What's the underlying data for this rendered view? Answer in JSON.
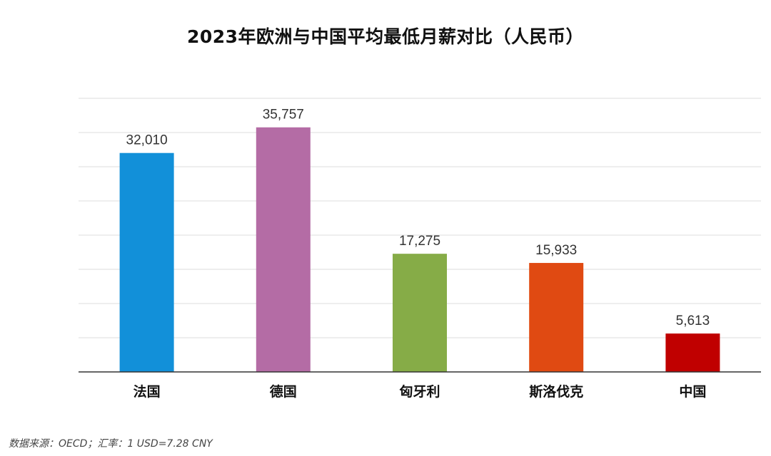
{
  "title": "2023年欧洲与中国平均最低月薪对比（人民币）",
  "source_note": "数据来源：OECD；汇率：1 USD=7.28 CNY",
  "colors": {
    "gridline": "#dddddd",
    "axis": "#333333"
  },
  "chart_data": {
    "type": "bar",
    "title": "2023年欧洲与中国平均最低月薪对比（人民币）",
    "xlabel": "",
    "ylabel": "",
    "ylim": [
      0,
      40000
    ],
    "y_gridline_step": 5000,
    "grid": true,
    "legend": false,
    "categories": [
      "法国",
      "德国",
      "匈牙利",
      "斯洛伐克",
      "中国"
    ],
    "values": [
      32010,
      35757,
      17275,
      15933,
      5613
    ],
    "value_labels": [
      "32,010",
      "35,757",
      "17,275",
      "15,933",
      "5,613"
    ],
    "bar_colors": [
      "#1290d9",
      "#b46ca5",
      "#86ac47",
      "#e04a12",
      "#c00000"
    ]
  }
}
